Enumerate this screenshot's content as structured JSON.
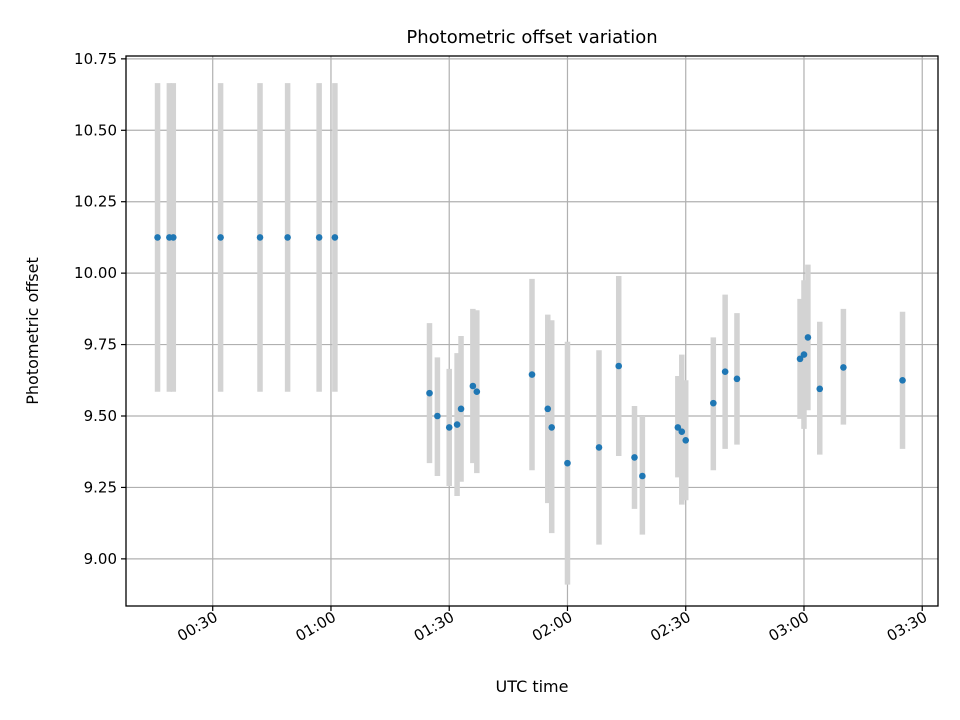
{
  "chart_data": {
    "type": "scatter",
    "title": "Photometric offset variation",
    "xlabel": "UTC time",
    "ylabel": "Photometric offset",
    "xlim": [
      "00:08",
      "03:34"
    ],
    "ylim": [
      8.835,
      10.76
    ],
    "grid": true,
    "x_ticks": [
      "00:30",
      "01:00",
      "01:30",
      "02:00",
      "02:30",
      "03:00",
      "03:30"
    ],
    "y_ticks": [
      "9.00",
      "9.25",
      "9.50",
      "9.75",
      "10.00",
      "10.25",
      "10.50",
      "10.75"
    ],
    "colors": {
      "point": "#1f77b4",
      "errorbar": "#d3d3d3",
      "grid": "#b0b0b0"
    },
    "series": [
      {
        "points": [
          {
            "x": "00:16",
            "y": 10.125,
            "lo": 9.585,
            "hi": 10.665
          },
          {
            "x": "00:19",
            "y": 10.125,
            "lo": 9.585,
            "hi": 10.665
          },
          {
            "x": "00:20",
            "y": 10.125,
            "lo": 9.585,
            "hi": 10.665
          },
          {
            "x": "00:32",
            "y": 10.125,
            "lo": 9.585,
            "hi": 10.665
          },
          {
            "x": "00:42",
            "y": 10.125,
            "lo": 9.585,
            "hi": 10.665
          },
          {
            "x": "00:49",
            "y": 10.125,
            "lo": 9.585,
            "hi": 10.665
          },
          {
            "x": "00:57",
            "y": 10.125,
            "lo": 9.585,
            "hi": 10.665
          },
          {
            "x": "01:01",
            "y": 10.125,
            "lo": 9.585,
            "hi": 10.665
          },
          {
            "x": "01:25",
            "y": 9.58,
            "lo": 9.335,
            "hi": 9.825
          },
          {
            "x": "01:27",
            "y": 9.5,
            "lo": 9.29,
            "hi": 9.705
          },
          {
            "x": "01:30",
            "y": 9.46,
            "lo": 9.255,
            "hi": 9.665
          },
          {
            "x": "01:32",
            "y": 9.47,
            "lo": 9.22,
            "hi": 9.72
          },
          {
            "x": "01:33",
            "y": 9.525,
            "lo": 9.27,
            "hi": 9.78
          },
          {
            "x": "01:36",
            "y": 9.605,
            "lo": 9.335,
            "hi": 9.875
          },
          {
            "x": "01:37",
            "y": 9.585,
            "lo": 9.3,
            "hi": 9.87
          },
          {
            "x": "01:51",
            "y": 9.645,
            "lo": 9.31,
            "hi": 9.98
          },
          {
            "x": "01:55",
            "y": 9.525,
            "lo": 9.195,
            "hi": 9.855
          },
          {
            "x": "01:56",
            "y": 9.46,
            "lo": 9.09,
            "hi": 9.835
          },
          {
            "x": "02:00",
            "y": 9.335,
            "lo": 8.91,
            "hi": 9.76
          },
          {
            "x": "02:08",
            "y": 9.39,
            "lo": 9.05,
            "hi": 9.73
          },
          {
            "x": "02:13",
            "y": 9.675,
            "lo": 9.36,
            "hi": 9.99
          },
          {
            "x": "02:17",
            "y": 9.355,
            "lo": 9.175,
            "hi": 9.535
          },
          {
            "x": "02:19",
            "y": 9.29,
            "lo": 9.085,
            "hi": 9.5
          },
          {
            "x": "02:28",
            "y": 9.46,
            "lo": 9.285,
            "hi": 9.64
          },
          {
            "x": "02:29",
            "y": 9.445,
            "lo": 9.19,
            "hi": 9.715
          },
          {
            "x": "02:30",
            "y": 9.415,
            "lo": 9.205,
            "hi": 9.625
          },
          {
            "x": "02:37",
            "y": 9.545,
            "lo": 9.31,
            "hi": 9.775
          },
          {
            "x": "02:40",
            "y": 9.655,
            "lo": 9.385,
            "hi": 9.925
          },
          {
            "x": "02:43",
            "y": 9.63,
            "lo": 9.4,
            "hi": 9.86
          },
          {
            "x": "02:59",
            "y": 9.7,
            "lo": 9.49,
            "hi": 9.91
          },
          {
            "x": "03:00",
            "y": 9.715,
            "lo": 9.455,
            "hi": 9.975
          },
          {
            "x": "03:01",
            "y": 9.775,
            "lo": 9.52,
            "hi": 10.03
          },
          {
            "x": "03:04",
            "y": 9.595,
            "lo": 9.365,
            "hi": 9.83
          },
          {
            "x": "03:10",
            "y": 9.67,
            "lo": 9.47,
            "hi": 9.875
          },
          {
            "x": "03:25",
            "y": 9.625,
            "lo": 9.385,
            "hi": 9.865
          }
        ]
      }
    ]
  }
}
